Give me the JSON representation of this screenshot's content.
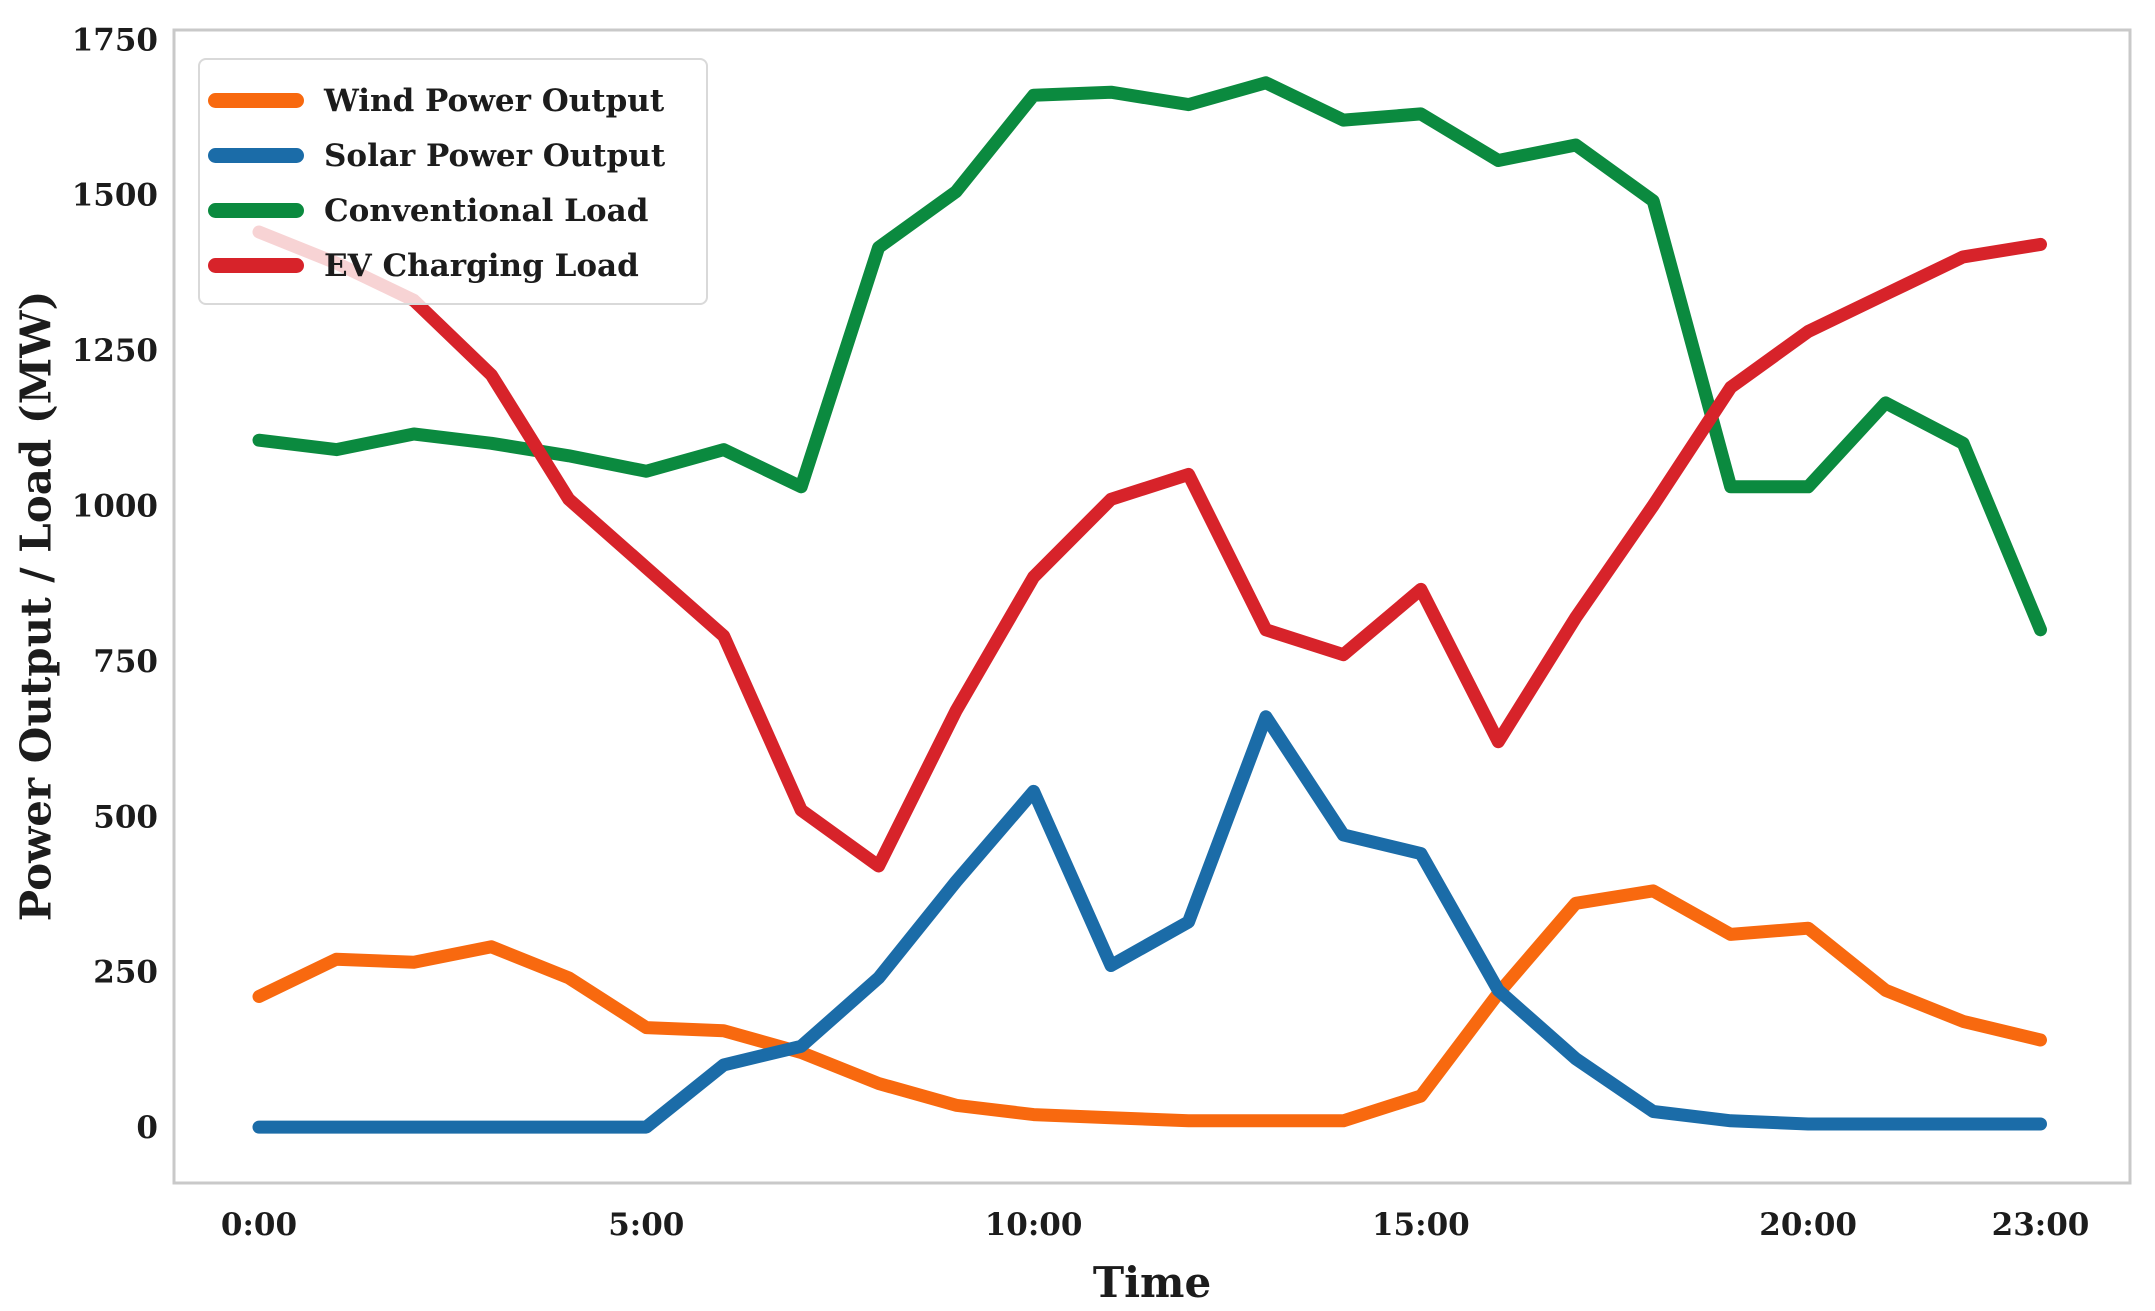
{
  "chart_data": {
    "type": "line",
    "title": "",
    "xlabel": "Time",
    "ylabel": "Power Output / Load (MW)",
    "x_hours": [
      0,
      1,
      2,
      3,
      4,
      5,
      6,
      7,
      8,
      9,
      10,
      11,
      12,
      13,
      14,
      15,
      16,
      17,
      18,
      19,
      20,
      21,
      22,
      23
    ],
    "x_ticks": [
      {
        "hour": 0,
        "label": "0:00"
      },
      {
        "hour": 5,
        "label": "5:00"
      },
      {
        "hour": 10,
        "label": "10:00"
      },
      {
        "hour": 15,
        "label": "15:00"
      },
      {
        "hour": 20,
        "label": "20:00"
      },
      {
        "hour": 23,
        "label": "23:00"
      }
    ],
    "y_ticks": [
      0,
      250,
      500,
      750,
      1000,
      1250,
      1500,
      1750
    ],
    "xlim": [
      -1.097,
      24.155
    ],
    "ylim": [
      -90,
      1765
    ],
    "grid": false,
    "legend_position": "upper left",
    "axis_box_color": "#c9c9c9",
    "text_color": "#1c1c1c",
    "line_width": 13,
    "series": [
      {
        "name": "Wind Power Output",
        "color": "#F8690F",
        "values": [
          210,
          270,
          265,
          290,
          240,
          160,
          155,
          120,
          70,
          35,
          20,
          15,
          10,
          10,
          10,
          50,
          215,
          360,
          380,
          310,
          320,
          220,
          170,
          140
        ]
      },
      {
        "name": "Solar Power Output",
        "color": "#1B6CA8",
        "values": [
          0,
          0,
          0,
          0,
          0,
          0,
          100,
          130,
          240,
          395,
          540,
          260,
          330,
          660,
          470,
          440,
          220,
          110,
          25,
          10,
          5,
          5,
          5,
          5
        ]
      },
      {
        "name": "Conventional Load",
        "color": "#0B8A3F",
        "values": [
          1105,
          1090,
          1115,
          1100,
          1080,
          1055,
          1090,
          1030,
          1415,
          1505,
          1660,
          1665,
          1645,
          1680,
          1620,
          1630,
          1555,
          1580,
          1490,
          1030,
          1030,
          1165,
          1100,
          800
        ]
      },
      {
        "name": "EV Charging Load",
        "color": "#D7232A",
        "values": [
          1440,
          1390,
          1330,
          1210,
          1010,
          900,
          790,
          510,
          420,
          670,
          885,
          1010,
          1050,
          800,
          760,
          865,
          620,
          820,
          1000,
          1190,
          1280,
          1340,
          1400,
          1420
        ]
      }
    ]
  }
}
